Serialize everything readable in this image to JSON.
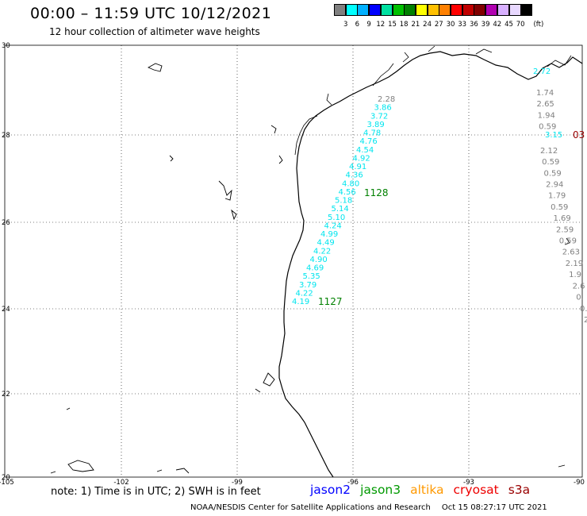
{
  "header": {
    "title": "00:00 – 11:59 UTC 10/12/2021",
    "subtitle": "12 hour collection of altimeter wave heights"
  },
  "colorbar": {
    "unit": "(ft)",
    "colors": [
      "#808080",
      "#00ffff",
      "#00b0ff",
      "#0000ff",
      "#00e0a0",
      "#00c000",
      "#008000",
      "#ffff00",
      "#ffc000",
      "#ff8000",
      "#ff0000",
      "#c00000",
      "#800000",
      "#b000b0",
      "#d8b0ff",
      "#e8d8ff",
      "#000000"
    ],
    "labels": [
      "3",
      "6",
      "9",
      "12",
      "15",
      "18",
      "21",
      "24",
      "27",
      "30",
      "33",
      "36",
      "39",
      "42",
      "45",
      "70"
    ]
  },
  "axes": {
    "x_ticks": [
      "-105",
      "-102",
      "-99",
      "-96",
      "-93",
      "-90"
    ],
    "y_ticks": [
      "30",
      "28",
      "26",
      "24",
      "22",
      "20"
    ]
  },
  "passes": {
    "jason3_west": {
      "color": "#00e5ee",
      "values": [
        "2.28",
        "3.86",
        "3.72",
        "3.89",
        "4.78",
        "4.76",
        "4.54",
        "4.92",
        "4.91",
        "4.36",
        "4.80",
        "4.56",
        "5.18",
        "5.14",
        "5.10",
        "4.24",
        "4.99",
        "4.49",
        "4.22",
        "4.90",
        "4.69",
        "5.35",
        "3.79",
        "4.22",
        "4.19"
      ],
      "labels": [
        "1128",
        "1127"
      ]
    },
    "east_gray": {
      "values": [
        "1.74",
        "2.65",
        "1.94",
        "0.59",
        "2.12",
        "0.59",
        "0.59",
        "2.94",
        "1.79",
        "0.59",
        "1.69",
        "2.59",
        "0.59",
        "2.63",
        "2.19",
        "1.9",
        "2.6",
        "0.",
        "0.",
        "2"
      ]
    },
    "east_cyan": {
      "values": [
        "2.72",
        "3.15"
      ]
    },
    "east_red": {
      "values": [
        "03"
      ]
    }
  },
  "footer": {
    "note": "note: 1) Time is in UTC; 2) SWH is in feet",
    "legend": [
      {
        "name": "jason2",
        "color": "#0000ff"
      },
      {
        "name": "jason3",
        "color": "#009900"
      },
      {
        "name": "altika",
        "color": "#ff9900"
      },
      {
        "name": "cryosat",
        "color": "#ee0000"
      },
      {
        "name": "s3a",
        "color": "#990000"
      }
    ],
    "credit_org": "NOAA/NESDIS Center for Satellite Applications and Research",
    "credit_time": "Oct 15 08:27:17 UTC 2021"
  }
}
